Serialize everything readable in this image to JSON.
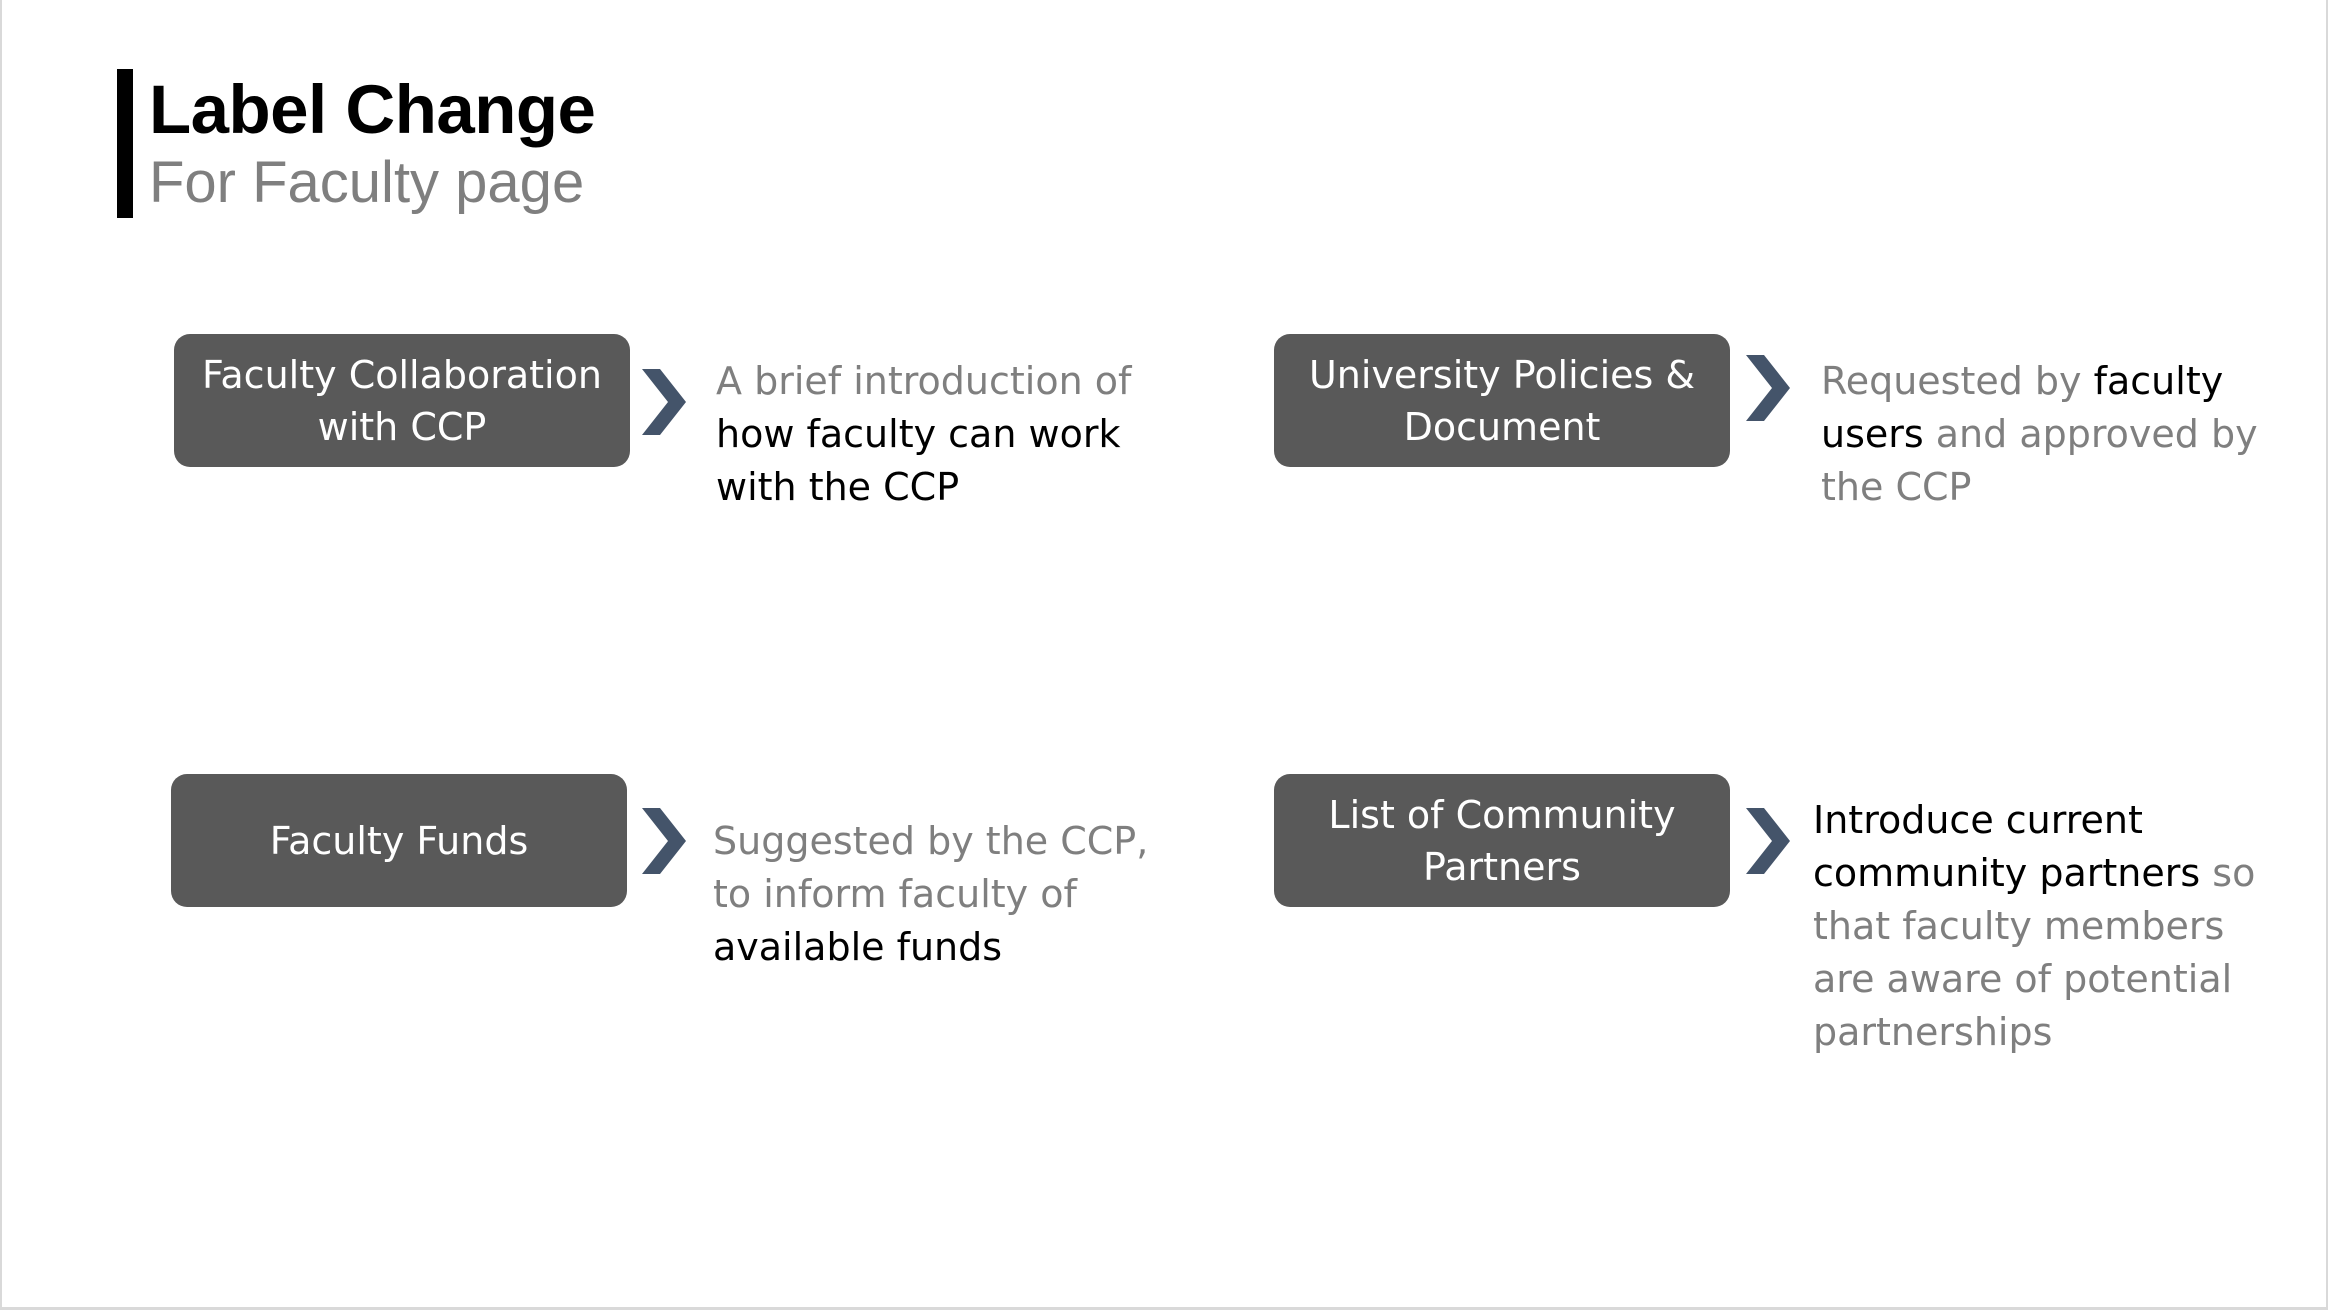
{
  "header": {
    "title": "Label Change",
    "subtitle": "For Faculty page"
  },
  "items": [
    {
      "label_lines": [
        "Faculty Collaboration",
        "with CCP"
      ],
      "desc_lines": [
        [
          {
            "text": "A brief introduction of",
            "emphasis": false
          }
        ],
        [
          {
            "text": "how faculty can work",
            "emphasis": true
          }
        ],
        [
          {
            "text": "with the CCP",
            "emphasis": true
          }
        ]
      ]
    },
    {
      "label_lines": [
        "University Policies &",
        "Document"
      ],
      "desc_lines": [
        [
          {
            "text": "Requested by ",
            "emphasis": false
          },
          {
            "text": "faculty",
            "emphasis": true
          }
        ],
        [
          {
            "text": "users",
            "emphasis": true
          },
          {
            "text": " and approved by",
            "emphasis": false
          }
        ],
        [
          {
            "text": "the CCP",
            "emphasis": false
          }
        ]
      ]
    },
    {
      "label_lines": [
        "Faculty Funds"
      ],
      "desc_lines": [
        [
          {
            "text": "Suggested by the CCP,",
            "emphasis": false
          }
        ],
        [
          {
            "text": "to inform faculty of",
            "emphasis": false
          }
        ],
        [
          {
            "text": "available funds",
            "emphasis": true
          }
        ]
      ]
    },
    {
      "label_lines": [
        "List of Community",
        "Partners"
      ],
      "desc_lines": [
        [
          {
            "text": "Introduce current",
            "emphasis": true
          }
        ],
        [
          {
            "text": "community partners",
            "emphasis": true
          },
          {
            "text": " so",
            "emphasis": false
          }
        ],
        [
          {
            "text": "that faculty members",
            "emphasis": false
          }
        ],
        [
          {
            "text": "are aware of potential",
            "emphasis": false
          }
        ],
        [
          {
            "text": "partnerships",
            "emphasis": false
          }
        ]
      ]
    }
  ],
  "colors": {
    "box_fill": "#595959",
    "chevron": "#44546a",
    "muted_text": "#7f7f7f",
    "emphasis_text": "#000000"
  },
  "icons": {
    "arrow": "chevron-right-icon"
  }
}
